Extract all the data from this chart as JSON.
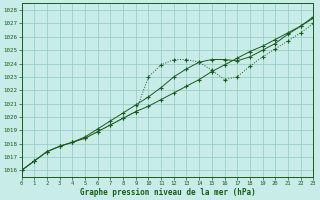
{
  "title": "Graphe pression niveau de la mer (hPa)",
  "bg_color": "#c8ece8",
  "grid_color": "#90c8c0",
  "line_color": "#1a5c1a",
  "xlim": [
    0,
    23
  ],
  "ylim": [
    1015.5,
    1028.5
  ],
  "xticks": [
    0,
    1,
    2,
    3,
    4,
    5,
    6,
    7,
    8,
    9,
    10,
    11,
    12,
    13,
    14,
    15,
    16,
    17,
    18,
    19,
    20,
    21,
    22,
    23
  ],
  "yticks": [
    1016,
    1017,
    1018,
    1019,
    1020,
    1021,
    1022,
    1023,
    1024,
    1025,
    1026,
    1027,
    1028
  ],
  "line1": [
    1016.0,
    1016.7,
    1017.4,
    1017.8,
    1018.1,
    1018.4,
    1018.9,
    1019.4,
    1019.9,
    1020.4,
    1020.8,
    1021.3,
    1021.8,
    1022.3,
    1022.8,
    1023.4,
    1023.9,
    1024.4,
    1024.9,
    1025.3,
    1025.8,
    1026.3,
    1026.8,
    1027.4
  ],
  "line2": [
    1016.0,
    1016.7,
    1017.4,
    1017.8,
    1018.1,
    1018.5,
    1019.1,
    1019.7,
    1020.3,
    1020.9,
    1021.5,
    1022.2,
    1023.0,
    1023.6,
    1024.1,
    1024.3,
    1024.3,
    1024.2,
    1024.5,
    1025.0,
    1025.5,
    1026.2,
    1026.8,
    1027.5
  ],
  "line3": [
    1016.0,
    1016.7,
    1017.4,
    1017.8,
    1018.1,
    1018.4,
    1018.9,
    1019.4,
    1019.9,
    1020.4,
    1023.0,
    1023.9,
    1024.3,
    1024.3,
    1024.1,
    1023.5,
    1022.8,
    1023.0,
    1023.8,
    1024.5,
    1025.1,
    1025.7,
    1026.3,
    1027.0
  ]
}
